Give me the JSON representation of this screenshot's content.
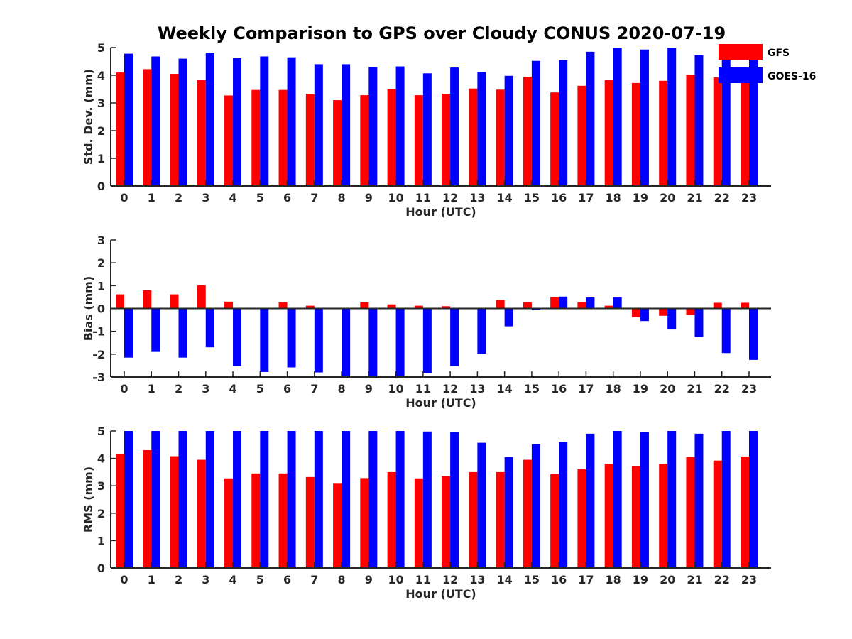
{
  "title": "Weekly Comparison to GPS over Cloudy CONUS 2020-07-19",
  "colors": {
    "GFS": "#ff0000",
    "GOES-16": "#0000ff",
    "axis": "#262626"
  },
  "legend": {
    "placement": "top-right",
    "entries": [
      "GFS",
      "GOES-16"
    ]
  },
  "chart_data": [
    {
      "type": "bar",
      "categories": [
        "0",
        "1",
        "2",
        "3",
        "4",
        "5",
        "6",
        "7",
        "8",
        "9",
        "10",
        "11",
        "12",
        "13",
        "14",
        "15",
        "16",
        "17",
        "18",
        "19",
        "20",
        "21",
        "22",
        "23"
      ],
      "xlabel": "Hour (UTC)",
      "ylabel": "Std. Dev. (mm)",
      "ylim": [
        0,
        5
      ],
      "yticks": [
        "0",
        "1",
        "2",
        "3",
        "4",
        "5"
      ],
      "grid": false,
      "series": [
        {
          "name": "GFS",
          "values": [
            4.1,
            4.22,
            4.05,
            3.82,
            3.27,
            3.47,
            3.47,
            3.33,
            3.1,
            3.28,
            3.5,
            3.28,
            3.33,
            3.52,
            3.48,
            3.95,
            3.38,
            3.62,
            3.82,
            3.72,
            3.8,
            4.02,
            3.92,
            3.9
          ]
        },
        {
          "name": "GOES-16",
          "values": [
            4.78,
            4.68,
            4.6,
            4.82,
            4.62,
            4.68,
            4.65,
            4.4,
            4.4,
            4.3,
            4.32,
            4.07,
            4.28,
            4.12,
            3.98,
            4.52,
            4.55,
            4.85,
            5.0,
            4.93,
            5.0,
            4.72,
            4.6,
            4.72
          ]
        }
      ]
    },
    {
      "type": "bar",
      "categories": [
        "0",
        "1",
        "2",
        "3",
        "4",
        "5",
        "6",
        "7",
        "8",
        "9",
        "10",
        "11",
        "12",
        "13",
        "14",
        "15",
        "16",
        "17",
        "18",
        "19",
        "20",
        "21",
        "22",
        "23"
      ],
      "xlabel": "Hour (UTC)",
      "ylabel": "Bias (mm)",
      "ylim": [
        -3,
        3
      ],
      "yticks": [
        "-3",
        "-2",
        "-1",
        "0",
        "1",
        "2",
        "3"
      ],
      "grid": false,
      "series": [
        {
          "name": "GFS",
          "values": [
            0.62,
            0.8,
            0.62,
            1.02,
            0.3,
            -0.02,
            0.27,
            0.12,
            0.02,
            0.27,
            0.18,
            0.12,
            0.1,
            0.03,
            0.37,
            0.27,
            0.5,
            0.28,
            0.12,
            -0.38,
            -0.32,
            -0.28,
            0.25,
            0.25
          ]
        },
        {
          "name": "GOES-16",
          "values": [
            -2.15,
            -1.9,
            -2.15,
            -1.7,
            -2.52,
            -2.78,
            -2.58,
            -2.8,
            -3.0,
            -3.0,
            -3.0,
            -2.82,
            -2.52,
            -1.98,
            -0.78,
            -0.05,
            0.52,
            0.48,
            0.48,
            -0.55,
            -0.92,
            -1.25,
            -1.95,
            -2.25
          ]
        }
      ]
    },
    {
      "type": "bar",
      "categories": [
        "0",
        "1",
        "2",
        "3",
        "4",
        "5",
        "6",
        "7",
        "8",
        "9",
        "10",
        "11",
        "12",
        "13",
        "14",
        "15",
        "16",
        "17",
        "18",
        "19",
        "20",
        "21",
        "22",
        "23"
      ],
      "xlabel": "Hour (UTC)",
      "ylabel": "RMS (mm)",
      "ylim": [
        0,
        5
      ],
      "yticks": [
        "0",
        "1",
        "2",
        "3",
        "4",
        "5"
      ],
      "grid": false,
      "series": [
        {
          "name": "GFS",
          "values": [
            4.15,
            4.3,
            4.08,
            3.95,
            3.27,
            3.45,
            3.45,
            3.32,
            3.1,
            3.28,
            3.5,
            3.27,
            3.35,
            3.5,
            3.5,
            3.95,
            3.42,
            3.6,
            3.8,
            3.72,
            3.8,
            4.05,
            3.92,
            4.07
          ]
        },
        {
          "name": "GOES-16",
          "values": [
            5.0,
            5.0,
            5.0,
            5.0,
            5.0,
            5.0,
            5.0,
            5.0,
            5.0,
            5.0,
            5.0,
            4.98,
            4.97,
            4.57,
            4.05,
            4.52,
            4.6,
            4.9,
            5.0,
            4.97,
            5.0,
            4.9,
            5.0,
            5.0
          ]
        }
      ]
    }
  ]
}
